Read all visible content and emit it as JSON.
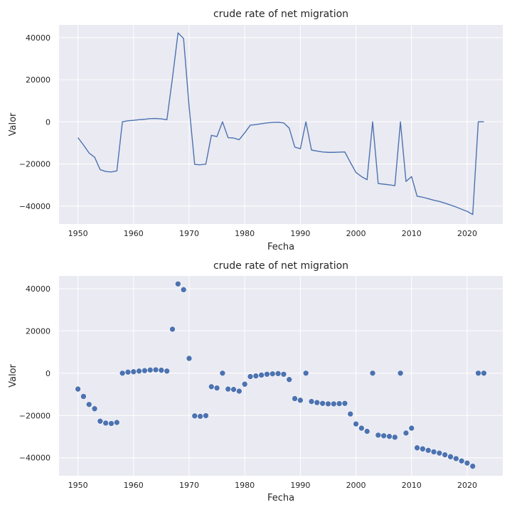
{
  "chart_data": [
    {
      "type": "line",
      "title": "crude rate of net migration",
      "xlabel": "Fecha",
      "ylabel": "Valor",
      "xlim": [
        1946.6,
        2026.4
      ],
      "ylim": [
        -48500,
        46000
      ],
      "xticks": [
        1950,
        1960,
        1970,
        1980,
        1990,
        2000,
        2010,
        2020
      ],
      "yticks": [
        -40000,
        -20000,
        0,
        20000,
        40000
      ],
      "grid": true,
      "color": "#4c72b0",
      "background": "#eaeaf2",
      "series": [
        {
          "x": [
            1950,
            1951,
            1952,
            1953,
            1954,
            1955,
            1956,
            1957,
            1958,
            1959,
            1960,
            1961,
            1962,
            1963,
            1964,
            1965,
            1966,
            1967,
            1968,
            1969,
            1970,
            1971,
            1972,
            1973,
            1974,
            1975,
            1976,
            1977,
            1978,
            1979,
            1980,
            1981,
            1982,
            1983,
            1984,
            1985,
            1986,
            1987,
            1988,
            1989,
            1990,
            1991,
            1992,
            1993,
            1994,
            1995,
            1996,
            1997,
            1998,
            1999,
            2000,
            2001,
            2002,
            2003,
            2004,
            2005,
            2006,
            2007,
            2008,
            2009,
            2010,
            2011,
            2012,
            2013,
            2014,
            2015,
            2016,
            2017,
            2018,
            2019,
            2020,
            2021,
            2022,
            2023
          ],
          "y": [
            -7500,
            -11000,
            -14800,
            -16800,
            -22700,
            -23600,
            -23800,
            -23300,
            0,
            500,
            700,
            1000,
            1200,
            1500,
            1600,
            1400,
            1000,
            20800,
            42200,
            39500,
            7000,
            -20200,
            -20400,
            -20100,
            -6400,
            -7000,
            0,
            -7500,
            -7700,
            -8500,
            -5200,
            -1600,
            -1300,
            -900,
            -500,
            -300,
            -200,
            -500,
            -3000,
            -12000,
            -12800,
            0,
            -13400,
            -13900,
            -14300,
            -14500,
            -14500,
            -14400,
            -14300,
            -19300,
            -24000,
            -26000,
            -27500,
            0,
            -29300,
            -29600,
            -29900,
            -30300,
            0,
            -28300,
            -26000,
            -35300,
            -35800,
            -36500,
            -37200,
            -37800,
            -38600,
            -39500,
            -40400,
            -41500,
            -42500,
            -44000,
            0,
            0
          ]
        }
      ]
    },
    {
      "type": "scatter",
      "title": "crude rate of net migration",
      "xlabel": "Fecha",
      "ylabel": "Valor",
      "xlim": [
        1946.6,
        2026.4
      ],
      "ylim": [
        -48500,
        46000
      ],
      "xticks": [
        1950,
        1960,
        1970,
        1980,
        1990,
        2000,
        2010,
        2020
      ],
      "yticks": [
        -40000,
        -20000,
        0,
        20000,
        40000
      ],
      "grid": true,
      "color": "#4c72b0",
      "background": "#eaeaf2",
      "series": [
        {
          "x": [
            1950,
            1951,
            1952,
            1953,
            1954,
            1955,
            1956,
            1957,
            1958,
            1959,
            1960,
            1961,
            1962,
            1963,
            1964,
            1965,
            1966,
            1967,
            1968,
            1969,
            1970,
            1971,
            1972,
            1973,
            1974,
            1975,
            1976,
            1977,
            1978,
            1979,
            1980,
            1981,
            1982,
            1983,
            1984,
            1985,
            1986,
            1987,
            1988,
            1989,
            1990,
            1991,
            1992,
            1993,
            1994,
            1995,
            1996,
            1997,
            1998,
            1999,
            2000,
            2001,
            2002,
            2003,
            2004,
            2005,
            2006,
            2007,
            2008,
            2009,
            2010,
            2011,
            2012,
            2013,
            2014,
            2015,
            2016,
            2017,
            2018,
            2019,
            2020,
            2021,
            2022,
            2023
          ],
          "y": [
            -7500,
            -11000,
            -14800,
            -16800,
            -22700,
            -23600,
            -23800,
            -23300,
            0,
            500,
            700,
            1000,
            1200,
            1500,
            1600,
            1400,
            1000,
            20800,
            42200,
            39500,
            7000,
            -20200,
            -20400,
            -20100,
            -6400,
            -7000,
            0,
            -7500,
            -7700,
            -8500,
            -5200,
            -1600,
            -1300,
            -900,
            -500,
            -300,
            -200,
            -500,
            -3000,
            -12000,
            -12800,
            0,
            -13400,
            -13900,
            -14300,
            -14500,
            -14500,
            -14400,
            -14300,
            -19300,
            -24000,
            -26000,
            -27500,
            0,
            -29300,
            -29600,
            -29900,
            -30300,
            0,
            -28300,
            -26000,
            -35300,
            -35800,
            -36500,
            -37200,
            -37800,
            -38600,
            -39500,
            -40400,
            -41500,
            -42500,
            -44000,
            0,
            0
          ]
        }
      ]
    }
  ]
}
